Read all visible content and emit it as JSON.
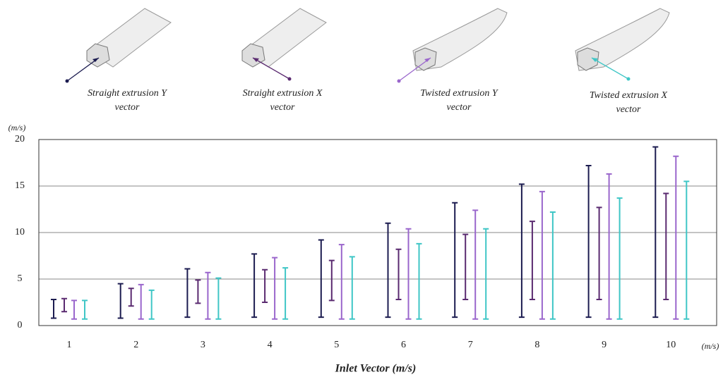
{
  "chart_data": {
    "type": "range",
    "x_label": "Inlet Vector (m/s)",
    "x_unit": "(m/s)",
    "y_unit": "(m/s)",
    "categories": [
      "1",
      "2",
      "3",
      "4",
      "5",
      "6",
      "7",
      "8",
      "9",
      "10"
    ],
    "ylim": [
      0,
      20
    ],
    "yticks": [
      0,
      5,
      10,
      15,
      20
    ],
    "grid": true,
    "series": [
      {
        "name": "Straight extrusion Y vector",
        "color": "#1c1c50",
        "low": [
          0.8,
          0.8,
          0.9,
          0.9,
          0.9,
          0.9,
          0.9,
          0.9,
          0.9,
          0.9
        ],
        "high": [
          2.8,
          4.5,
          6.1,
          7.7,
          9.2,
          11.0,
          13.2,
          15.2,
          17.2,
          19.2
        ]
      },
      {
        "name": "Straight extrusion X vector",
        "color": "#5a2a70",
        "low": [
          1.5,
          2.1,
          2.4,
          2.5,
          2.7,
          2.8,
          2.8,
          2.8,
          2.8,
          2.8
        ],
        "high": [
          2.9,
          4.0,
          4.9,
          6.0,
          7.0,
          8.2,
          9.8,
          11.2,
          12.7,
          14.2
        ]
      },
      {
        "name": "Twisted extrusion Y vector",
        "color": "#9a66cc",
        "low": [
          0.7,
          0.7,
          0.7,
          0.7,
          0.7,
          0.7,
          0.7,
          0.7,
          0.7,
          0.7
        ],
        "high": [
          2.7,
          4.4,
          5.7,
          7.3,
          8.7,
          10.4,
          12.4,
          14.4,
          16.3,
          18.2
        ]
      },
      {
        "name": "Twisted extrusion X vector",
        "color": "#3fc6c6",
        "low": [
          0.7,
          0.7,
          0.7,
          0.7,
          0.7,
          0.7,
          0.7,
          0.7,
          0.7,
          0.7
        ],
        "high": [
          2.7,
          3.8,
          5.1,
          6.2,
          7.4,
          8.8,
          10.4,
          12.2,
          13.7,
          15.5
        ]
      }
    ]
  }
}
